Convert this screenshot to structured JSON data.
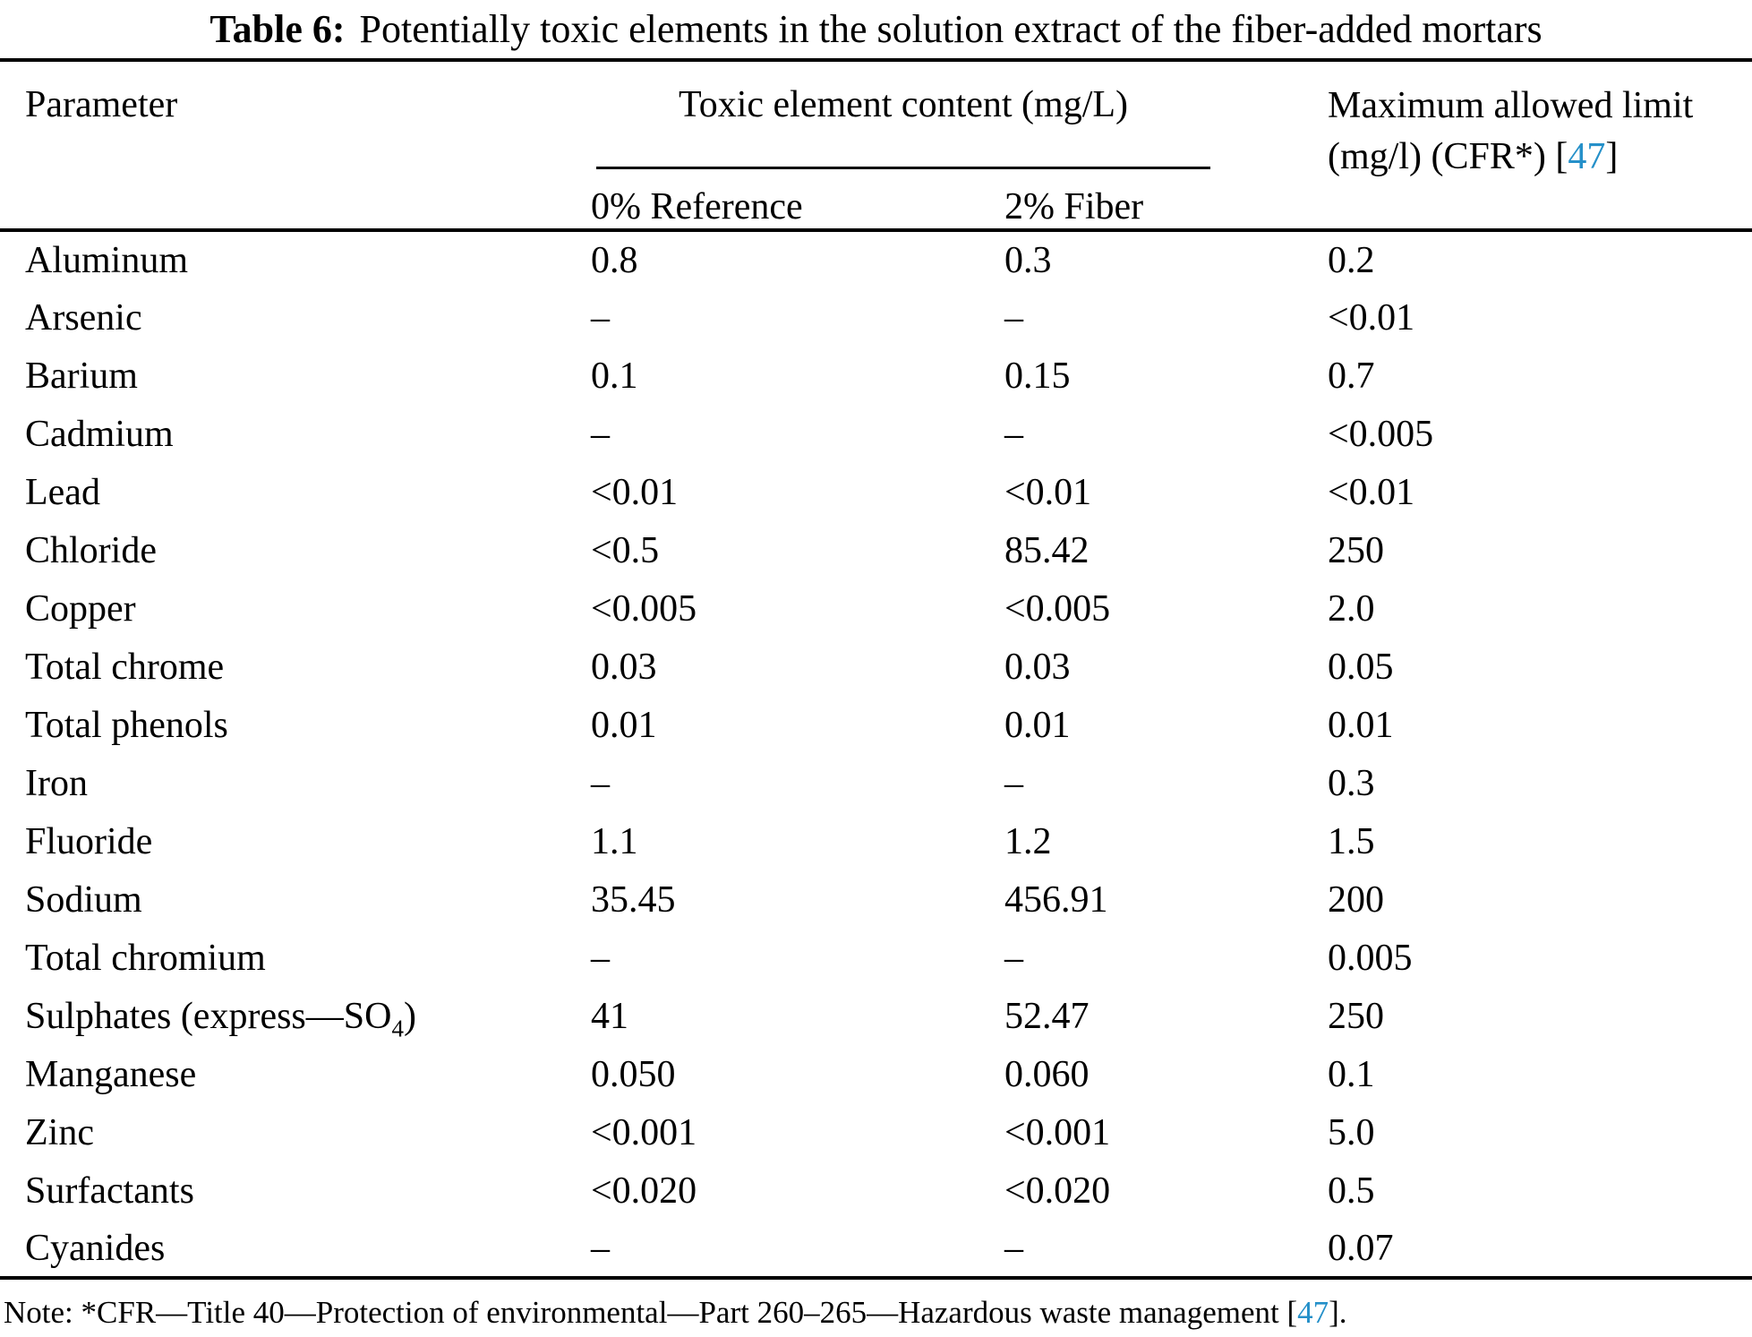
{
  "caption": {
    "label": "Table 6:",
    "text": "Potentially toxic elements in the solution extract of the fiber-added mortars"
  },
  "table": {
    "header_parameter": "Parameter",
    "group_header": "Toxic element content (mg/L)",
    "sub_header_reference": "0% Reference",
    "sub_header_fiber": "2% Fiber",
    "limit_header_line1": "Maximum allowed limit",
    "limit_header_line2_pre": "(mg/l) (CFR*) [",
    "limit_header_ref": "47",
    "limit_header_line2_post": "]",
    "rows": [
      {
        "parameter": "Aluminum",
        "reference": "0.8",
        "fiber": "0.3",
        "limit": "0.2"
      },
      {
        "parameter": "Arsenic",
        "reference": "–",
        "fiber": "–",
        "limit": "<0.01"
      },
      {
        "parameter": "Barium",
        "reference": "0.1",
        "fiber": "0.15",
        "limit": "0.7"
      },
      {
        "parameter": "Cadmium",
        "reference": "–",
        "fiber": "–",
        "limit": "<0.005"
      },
      {
        "parameter": "Lead",
        "reference": "<0.01",
        "fiber": "<0.01",
        "limit": "<0.01"
      },
      {
        "parameter": "Chloride",
        "reference": "<0.5",
        "fiber": "85.42",
        "limit": "250"
      },
      {
        "parameter": "Copper",
        "reference": "<0.005",
        "fiber": "<0.005",
        "limit": "2.0"
      },
      {
        "parameter": "Total chrome",
        "reference": "0.03",
        "fiber": "0.03",
        "limit": "0.05"
      },
      {
        "parameter": "Total phenols",
        "reference": "0.01",
        "fiber": "0.01",
        "limit": "0.01"
      },
      {
        "parameter": "Iron",
        "reference": "–",
        "fiber": "–",
        "limit": "0.3"
      },
      {
        "parameter": "Fluoride",
        "reference": "1.1",
        "fiber": "1.2",
        "limit": "1.5"
      },
      {
        "parameter": "Sodium",
        "reference": "35.45",
        "fiber": "456.91",
        "limit": "200"
      },
      {
        "parameter": "Total chromium",
        "reference": "–",
        "fiber": "–",
        "limit": "0.005"
      },
      {
        "parameter": "Sulphates (express—SO",
        "parameter_sub": "4",
        "parameter_after": ")",
        "reference": "41",
        "fiber": "52.47",
        "limit": "250"
      },
      {
        "parameter": "Manganese",
        "reference": "0.050",
        "fiber": "0.060",
        "limit": "0.1"
      },
      {
        "parameter": "Zinc",
        "reference": "<0.001",
        "fiber": "<0.001",
        "limit": "5.0"
      },
      {
        "parameter": "Surfactants",
        "reference": "<0.020",
        "fiber": "<0.020",
        "limit": "0.5"
      },
      {
        "parameter": "Cyanides",
        "reference": "–",
        "fiber": "–",
        "limit": "0.07"
      }
    ]
  },
  "note": {
    "text_pre": "Note: *CFR—Title 40—Protection of environmental—Part 260–265—Hazardous waste management [",
    "ref": "47",
    "text_post": "]."
  },
  "colors": {
    "text": "#000000",
    "link_blue": "#2590c9",
    "rule": "#000000",
    "background": "#ffffff"
  }
}
